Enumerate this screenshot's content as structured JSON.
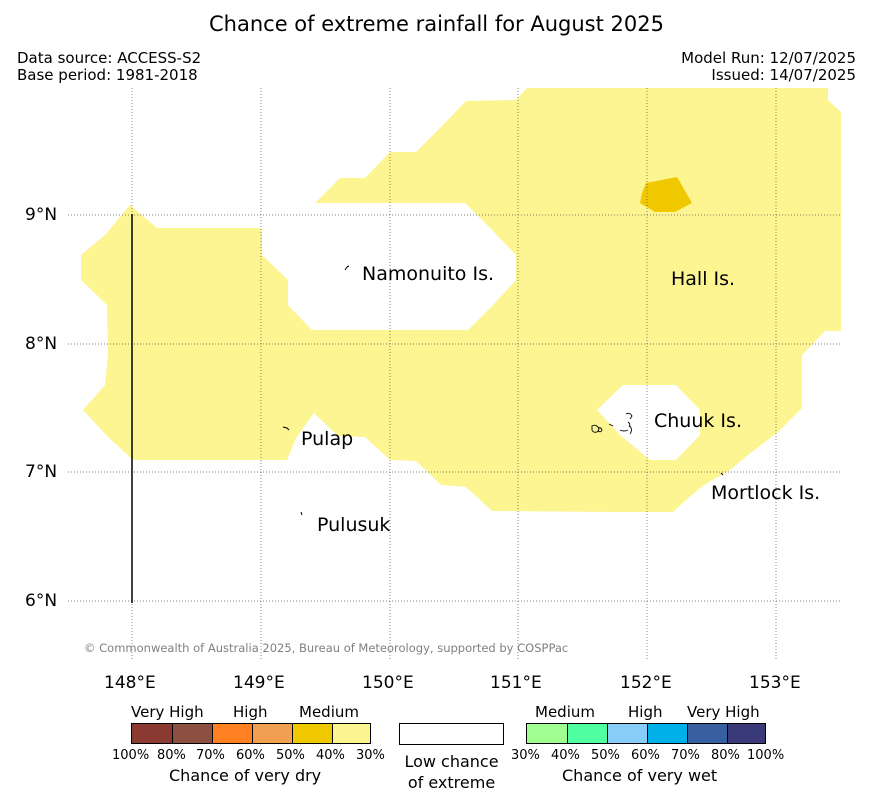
{
  "title": "Chance of extreme rainfall for August 2025",
  "info": {
    "data_source": "Data source: ACCESS-S2",
    "base_period": "Base period: 1981-2018",
    "model_run": "Model Run: 12/07/2025",
    "issued": "Issued: 14/07/2025"
  },
  "map": {
    "lat_labels": [
      "9°N",
      "8°N",
      "7°N",
      "6°N"
    ],
    "lon_labels": [
      "148°E",
      "149°E",
      "150°E",
      "151°E",
      "152°E",
      "153°E"
    ],
    "islands": {
      "namonuito": "Namonuito Is.",
      "hall": "Hall Is.",
      "pulap": "Pulap",
      "chuuk": "Chuuk Is.",
      "mortlock": "Mortlock Is.",
      "pulusuk": "Pulusuk"
    },
    "shading": [
      {
        "category": "Very dry 30-40%",
        "color": "#fcf591"
      },
      {
        "category": "Very dry 40-50%",
        "color": "#f0c800"
      }
    ],
    "copyright": "© Commonwealth of Australia 2025, Bureau of Meteorology, supported by COSPPac"
  },
  "legend": {
    "dry": {
      "categories": [
        "Very High",
        "High",
        "Medium"
      ],
      "ticks": [
        "100%",
        "80%",
        "70%",
        "60%",
        "50%",
        "40%",
        "30%"
      ],
      "colors": [
        "#8b3a32",
        "#8b5040",
        "#ff8020",
        "#f0a050",
        "#f0c800",
        "#fcf591"
      ],
      "caption": "Chance of very dry"
    },
    "neutral": {
      "caption_line1": "Low chance",
      "caption_line2": "of extreme"
    },
    "wet": {
      "categories": [
        "Medium",
        "High",
        "Very High"
      ],
      "ticks": [
        "30%",
        "40%",
        "50%",
        "60%",
        "70%",
        "80%",
        "100%"
      ],
      "colors": [
        "#a0ff90",
        "#50ffa0",
        "#88ccf8",
        "#00b0e8",
        "#3860a0",
        "#3a3a78"
      ],
      "caption": "Chance of very wet"
    }
  }
}
